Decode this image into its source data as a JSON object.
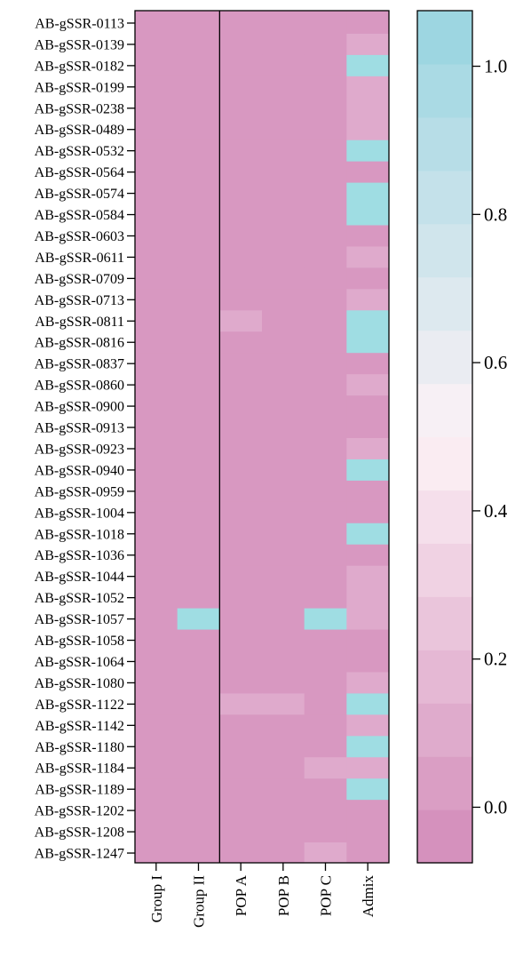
{
  "chart_data": {
    "type": "heatmap",
    "title": "",
    "xlabel": "",
    "ylabel": "",
    "columns": [
      "Group I",
      "Group II",
      "POP A",
      "POP B",
      "POP C",
      "Admix"
    ],
    "rows": [
      "AB-gSSR-0113",
      "AB-gSSR-0139",
      "AB-gSSR-0182",
      "AB-gSSR-0199",
      "AB-gSSR-0238",
      "AB-gSSR-0489",
      "AB-gSSR-0532",
      "AB-gSSR-0564",
      "AB-gSSR-0574",
      "AB-gSSR-0584",
      "AB-gSSR-0603",
      "AB-gSSR-0611",
      "AB-gSSR-0709",
      "AB-gSSR-0713",
      "AB-gSSR-0811",
      "AB-gSSR-0816",
      "AB-gSSR-0837",
      "AB-gSSR-0860",
      "AB-gSSR-0900",
      "AB-gSSR-0913",
      "AB-gSSR-0923",
      "AB-gSSR-0940",
      "AB-gSSR-0959",
      "AB-gSSR-1004",
      "AB-gSSR-1018",
      "AB-gSSR-1036",
      "AB-gSSR-1044",
      "AB-gSSR-1052",
      "AB-gSSR-1057",
      "AB-gSSR-1058",
      "AB-gSSR-1064",
      "AB-gSSR-1080",
      "AB-gSSR-1122",
      "AB-gSSR-1142",
      "AB-gSSR-1180",
      "AB-gSSR-1184",
      "AB-gSSR-1189",
      "AB-gSSR-1202",
      "AB-gSSR-1208",
      "AB-gSSR-1247"
    ],
    "values": [
      [
        0,
        0,
        0,
        0,
        0,
        0
      ],
      [
        0,
        0,
        0,
        0,
        0,
        0.1
      ],
      [
        0,
        0,
        0,
        0,
        0,
        1
      ],
      [
        0,
        0,
        0,
        0,
        0,
        0.1
      ],
      [
        0,
        0,
        0,
        0,
        0,
        0.1
      ],
      [
        0,
        0,
        0,
        0,
        0,
        0.1
      ],
      [
        0,
        0,
        0,
        0,
        0,
        1
      ],
      [
        0,
        0,
        0,
        0,
        0,
        0
      ],
      [
        0,
        0,
        0,
        0,
        0,
        1
      ],
      [
        0,
        0,
        0,
        0,
        0,
        1
      ],
      [
        0,
        0,
        0,
        0,
        0,
        0
      ],
      [
        0,
        0,
        0,
        0,
        0,
        0.1
      ],
      [
        0,
        0,
        0,
        0,
        0,
        0
      ],
      [
        0,
        0,
        0,
        0,
        0,
        0.1
      ],
      [
        0,
        0,
        0.1,
        0,
        0,
        1
      ],
      [
        0,
        0,
        0,
        0,
        0,
        1
      ],
      [
        0,
        0,
        0,
        0,
        0,
        0
      ],
      [
        0,
        0,
        0,
        0,
        0,
        0.1
      ],
      [
        0,
        0,
        0,
        0,
        0,
        0
      ],
      [
        0,
        0,
        0,
        0,
        0,
        0
      ],
      [
        0,
        0,
        0,
        0,
        0,
        0.1
      ],
      [
        0,
        0,
        0,
        0,
        0,
        1
      ],
      [
        0,
        0,
        0,
        0,
        0,
        0
      ],
      [
        0,
        0,
        0,
        0,
        0,
        0
      ],
      [
        0,
        0,
        0,
        0,
        0,
        1
      ],
      [
        0,
        0,
        0,
        0,
        0,
        0
      ],
      [
        0,
        0,
        0,
        0,
        0,
        0.1
      ],
      [
        0,
        0,
        0,
        0,
        0,
        0.1
      ],
      [
        0,
        1,
        0,
        0,
        1,
        0.1
      ],
      [
        0,
        0,
        0,
        0,
        0,
        0
      ],
      [
        0,
        0,
        0,
        0,
        0,
        0
      ],
      [
        0,
        0,
        0,
        0,
        0,
        0.1
      ],
      [
        0,
        0,
        0.1,
        0.1,
        0,
        1
      ],
      [
        0,
        0,
        0,
        0,
        0,
        0.1
      ],
      [
        0,
        0,
        0,
        0,
        0,
        1
      ],
      [
        0,
        0,
        0,
        0,
        0.1,
        0.1
      ],
      [
        0,
        0,
        0,
        0,
        0,
        1
      ],
      [
        0,
        0,
        0,
        0,
        0,
        0
      ],
      [
        0,
        0,
        0,
        0,
        0,
        0
      ],
      [
        0,
        0,
        0,
        0,
        0.1,
        0
      ]
    ],
    "group_separator_after_column": 1,
    "colorbar": {
      "range": [
        -0.075,
        1.075
      ],
      "ticks": [
        0.0,
        0.2,
        0.4,
        0.6,
        0.8,
        1.0
      ],
      "tick_labels": [
        "0.0",
        "0.2",
        "0.4",
        "0.6",
        "0.8",
        "1.0"
      ],
      "position": "right"
    },
    "colors": {
      "low": "#d28ab9",
      "mid": "#fdf2f6",
      "high": "#97d4e0",
      "high_cell": "#9fdde3"
    },
    "grid": false,
    "legend": "colorbar-right"
  }
}
